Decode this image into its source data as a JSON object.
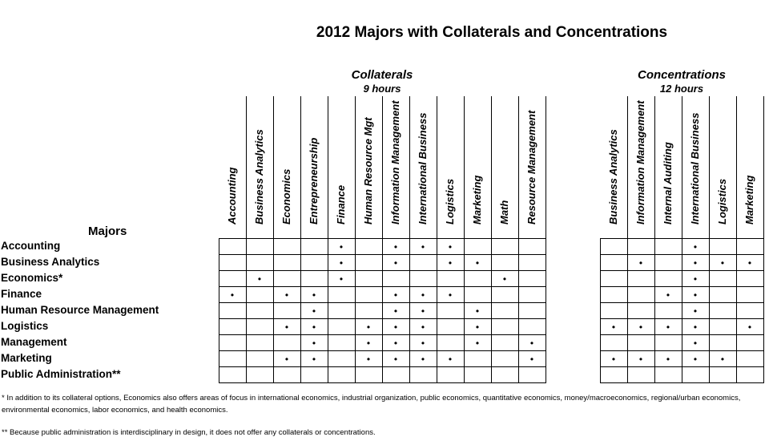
{
  "title": "2012 Majors with Collaterals and Concentrations",
  "collaterals": {
    "title": "Collaterals",
    "subtitle": "9 hours",
    "columns": [
      "Accounting",
      "Business Analytics",
      "Economics",
      "Entrepreneurship",
      "Finance",
      "Human Resource Mgt",
      "Information Management",
      "International Business",
      "Logistics",
      "Marketing",
      "Math",
      "Resource Management"
    ]
  },
  "concentrations": {
    "title": "Concentrations",
    "subtitle": "12 hours",
    "columns": [
      "Business Analytics",
      "Information Management",
      "Internal Auditing",
      "International Business",
      "Logistics",
      "Marketing"
    ]
  },
  "majors_header": "Majors",
  "bullet": "•",
  "rows": [
    {
      "label": "Accounting",
      "collaterals": [
        0,
        0,
        0,
        0,
        1,
        0,
        1,
        1,
        1,
        0,
        0,
        0
      ],
      "concentrations": [
        0,
        0,
        0,
        1,
        0,
        0
      ]
    },
    {
      "label": "Business Analytics",
      "collaterals": [
        0,
        0,
        0,
        0,
        1,
        0,
        1,
        0,
        1,
        1,
        0,
        0
      ],
      "concentrations": [
        0,
        1,
        0,
        1,
        1,
        1
      ]
    },
    {
      "label": "Economics*",
      "collaterals": [
        0,
        1,
        0,
        0,
        1,
        0,
        0,
        0,
        0,
        0,
        1,
        0
      ],
      "concentrations": [
        0,
        0,
        0,
        1,
        0,
        0
      ]
    },
    {
      "label": "Finance",
      "collaterals": [
        1,
        0,
        1,
        1,
        0,
        0,
        1,
        1,
        1,
        0,
        0,
        0
      ],
      "concentrations": [
        0,
        0,
        1,
        1,
        0,
        0
      ]
    },
    {
      "label": "Human Resource Management",
      "collaterals": [
        0,
        0,
        0,
        1,
        0,
        0,
        1,
        1,
        0,
        1,
        0,
        0
      ],
      "concentrations": [
        0,
        0,
        0,
        1,
        0,
        0
      ]
    },
    {
      "label": "Logistics",
      "collaterals": [
        0,
        0,
        1,
        1,
        0,
        1,
        1,
        1,
        0,
        1,
        0,
        0
      ],
      "concentrations": [
        1,
        1,
        1,
        1,
        0,
        1
      ]
    },
    {
      "label": "Management",
      "collaterals": [
        0,
        0,
        0,
        1,
        0,
        1,
        1,
        1,
        0,
        1,
        0,
        1
      ],
      "concentrations": [
        0,
        0,
        0,
        1,
        0,
        0
      ]
    },
    {
      "label": "Marketing",
      "collaterals": [
        0,
        0,
        1,
        1,
        0,
        1,
        1,
        1,
        1,
        0,
        0,
        1
      ],
      "concentrations": [
        1,
        1,
        1,
        1,
        1,
        0
      ]
    },
    {
      "label": "Public Administration**",
      "collaterals": [
        0,
        0,
        0,
        0,
        0,
        0,
        0,
        0,
        0,
        0,
        0,
        0
      ],
      "concentrations": [
        0,
        0,
        0,
        0,
        0,
        0
      ]
    }
  ],
  "footnotes": [
    "*  In addition to its collateral options, Economics also offers areas of focus in international economics, industrial organization, public economics, quantitative economics, money/macroeconomics, regional/urban economics, environmental economics, labor economics, and health economics.",
    "** Because public administration is interdisciplinary in design, it does not offer any collaterals or concentrations."
  ]
}
